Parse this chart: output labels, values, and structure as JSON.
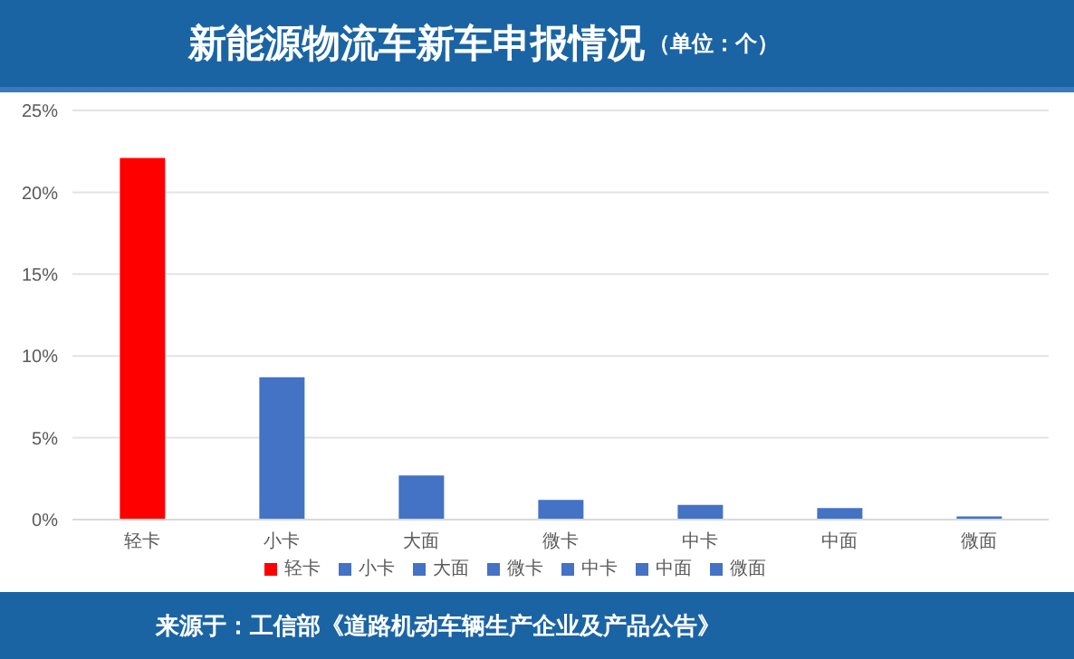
{
  "chart_data": {
    "type": "bar",
    "title": "新能源物流车新车申报情况",
    "subtitle": "（单位：个）",
    "categories": [
      "轻卡",
      "小卡",
      "大面",
      "微卡",
      "中卡",
      "中面",
      "微面"
    ],
    "series": [
      {
        "name": "轻卡",
        "color": "#ff0000",
        "values": [
          22.1,
          null,
          null,
          null,
          null,
          null,
          null
        ]
      },
      {
        "name": "小卡",
        "color": "#4472c4",
        "values": [
          null,
          8.7,
          null,
          null,
          null,
          null,
          null
        ]
      },
      {
        "name": "大面",
        "color": "#4472c4",
        "values": [
          null,
          null,
          2.7,
          null,
          null,
          null,
          null
        ]
      },
      {
        "name": "微卡",
        "color": "#4472c4",
        "values": [
          null,
          null,
          null,
          1.2,
          null,
          null,
          null
        ]
      },
      {
        "name": "中卡",
        "color": "#4472c4",
        "values": [
          null,
          null,
          null,
          null,
          0.9,
          null,
          null
        ]
      },
      {
        "name": "中面",
        "color": "#4472c4",
        "values": [
          null,
          null,
          null,
          null,
          null,
          0.7,
          null
        ]
      },
      {
        "name": "微面",
        "color": "#4472c4",
        "values": [
          null,
          null,
          null,
          null,
          null,
          null,
          0.2
        ]
      }
    ],
    "stacked": true,
    "ylim": [
      0,
      25
    ],
    "yticks": [
      {
        "value": 0,
        "label": "0%"
      },
      {
        "value": 5,
        "label": "5%"
      },
      {
        "value": 10,
        "label": "10%"
      },
      {
        "value": 15,
        "label": "15%"
      },
      {
        "value": 20,
        "label": "20%"
      },
      {
        "value": 25,
        "label": "25%"
      }
    ],
    "grid": "y",
    "legend": "bottom",
    "annotations": [
      "来源于：工信部《道路机动车辆生产企业及产品公告》"
    ]
  }
}
